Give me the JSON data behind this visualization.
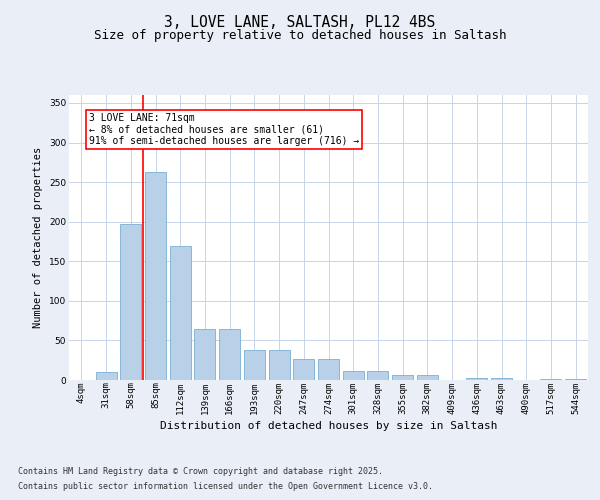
{
  "title": "3, LOVE LANE, SALTASH, PL12 4BS",
  "subtitle": "Size of property relative to detached houses in Saltash",
  "xlabel": "Distribution of detached houses by size in Saltash",
  "ylabel": "Number of detached properties",
  "footer_line1": "Contains HM Land Registry data © Crown copyright and database right 2025.",
  "footer_line2": "Contains public sector information licensed under the Open Government Licence v3.0.",
  "bins": [
    "4sqm",
    "31sqm",
    "58sqm",
    "85sqm",
    "112sqm",
    "139sqm",
    "166sqm",
    "193sqm",
    "220sqm",
    "247sqm",
    "274sqm",
    "301sqm",
    "328sqm",
    "355sqm",
    "382sqm",
    "409sqm",
    "436sqm",
    "463sqm",
    "490sqm",
    "517sqm",
    "544sqm"
  ],
  "bar_vals": [
    0,
    10,
    197,
    263,
    169,
    65,
    65,
    38,
    38,
    27,
    27,
    11,
    11,
    6,
    6,
    0,
    3,
    3,
    0,
    1,
    1
  ],
  "bar_color": "#b8d0e8",
  "bar_edge_color": "#7aafd4",
  "red_line_x": 2.5,
  "annotation_text": "3 LOVE LANE: 71sqm\n← 8% of detached houses are smaller (61)\n91% of semi-detached houses are larger (716) →",
  "annotation_box_color": "white",
  "annotation_box_edge": "red",
  "ylim": [
    0,
    360
  ],
  "yticks": [
    0,
    50,
    100,
    150,
    200,
    250,
    300,
    350
  ],
  "bg_color": "#eaeff7",
  "plot_bg_color": "white",
  "grid_color": "#c8d4e8",
  "title_fontsize": 10.5,
  "subtitle_fontsize": 9,
  "axis_label_fontsize": 7.5,
  "tick_fontsize": 6.5,
  "footer_fontsize": 6,
  "annot_fontsize": 7
}
